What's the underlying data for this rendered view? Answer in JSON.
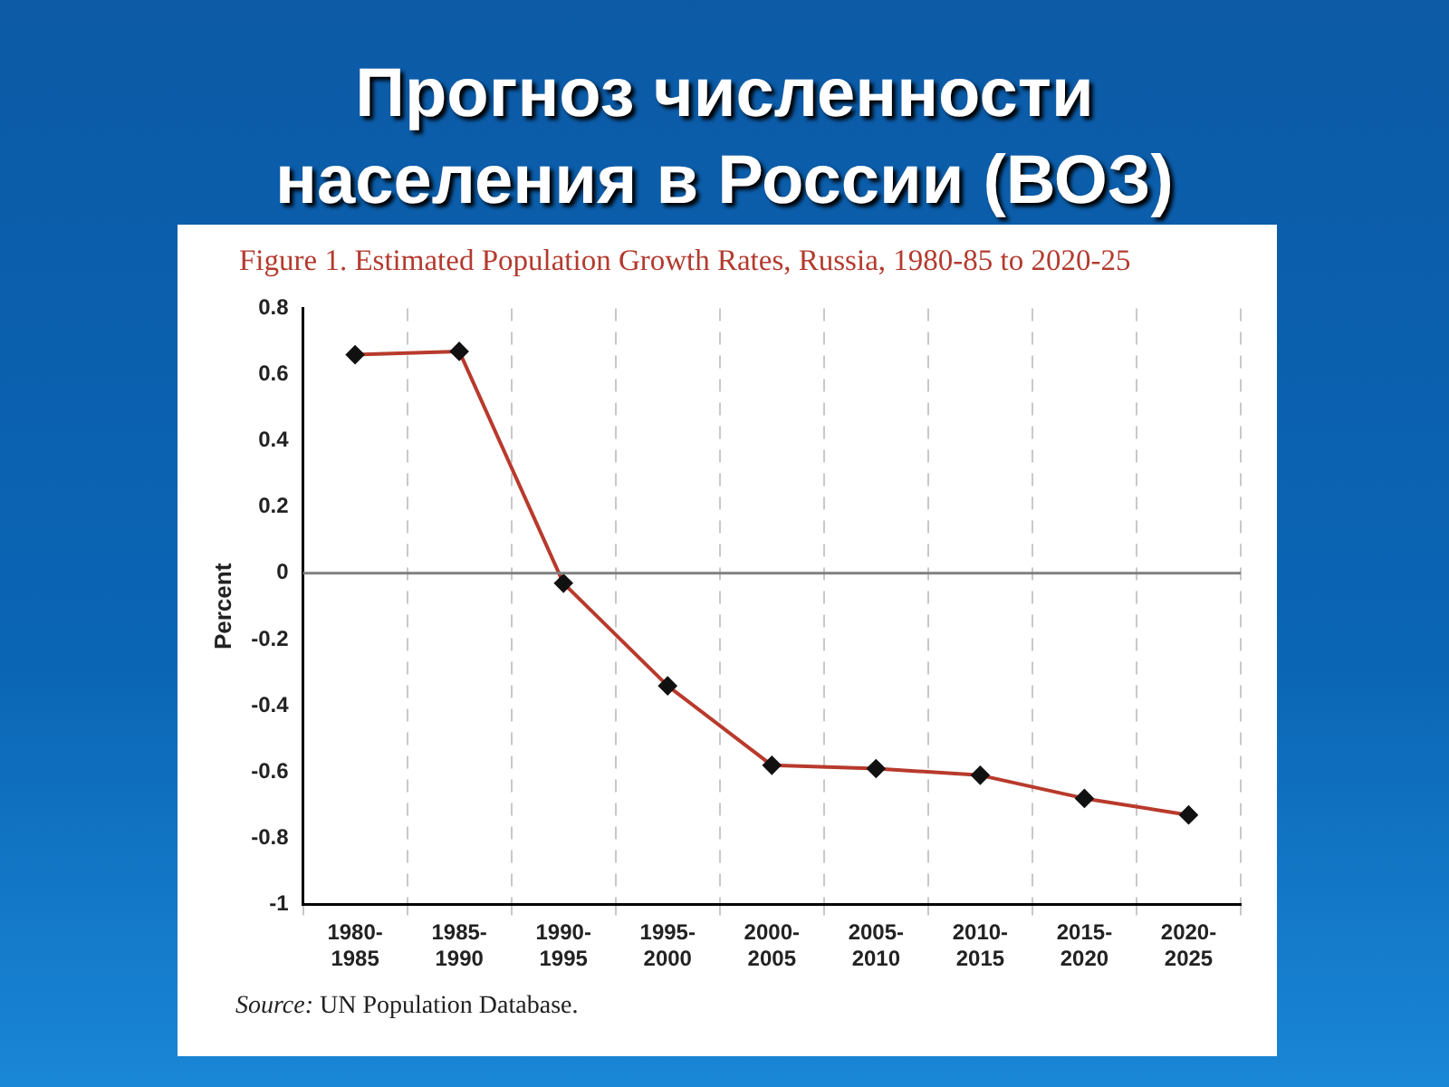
{
  "chart_data": {
    "type": "line",
    "title": "Прогноз численности населения в России (ВОЗ)",
    "subtitle": "Figure 1.  Estimated Population Growth Rates, Russia, 1980-85 to 2020-25",
    "ylabel": "Percent",
    "categories": [
      "1980-1985",
      "1985-1990",
      "1990-1995",
      "1995-2000",
      "2000-2005",
      "2005-2010",
      "2010-2015",
      "2015-2020",
      "2020-2025"
    ],
    "series": [
      {
        "color": "#b83a2c",
        "values": [
          0.66,
          0.67,
          -0.03,
          -0.34,
          -0.58,
          -0.59,
          -0.61,
          -0.68,
          -0.73
        ]
      }
    ],
    "ylim": [
      -1,
      0.8
    ],
    "yticks": [
      -1,
      -0.8,
      -0.6,
      -0.4,
      -0.2,
      0,
      0.2,
      0.4,
      0.6,
      0.8
    ],
    "grid": "x",
    "legend": false,
    "marker": "diamond",
    "line_style": "solid",
    "ref_lines": [
      {
        "axis": "y",
        "value": 0,
        "color": "#808080"
      }
    ],
    "annotations": [
      "Source: UN Population Database."
    ]
  }
}
